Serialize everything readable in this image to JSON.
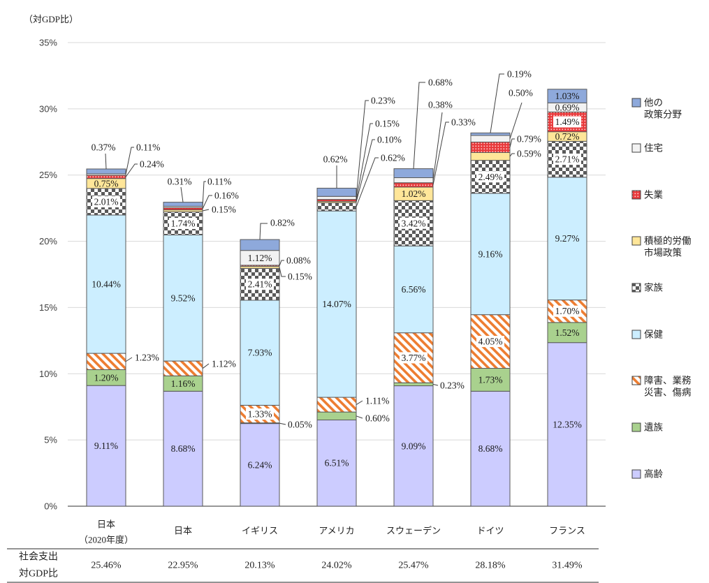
{
  "chart_data": {
    "type": "bar",
    "stacked": true,
    "title": "",
    "xlabel": "",
    "ylabel": "（対GDP比）",
    "ylim": [
      0,
      35
    ],
    "yticks": [
      0,
      5,
      10,
      15,
      20,
      25,
      30,
      35
    ],
    "ytick_labels": [
      "0%",
      "5%",
      "10%",
      "15%",
      "20%",
      "25%",
      "30%",
      "35%"
    ],
    "grid": true,
    "legend_position": "right",
    "categories": [
      "日本（2020年度）",
      "日本",
      "イギリス",
      "アメリカ",
      "スウェーデン",
      "ドイツ",
      "フランス"
    ],
    "category_label_lines": [
      [
        "日本",
        "（2020年度）"
      ],
      [
        "日本"
      ],
      [
        "イギリス"
      ],
      [
        "アメリカ"
      ],
      [
        "スウェーデン"
      ],
      [
        "ドイツ"
      ],
      [
        "フランス"
      ]
    ],
    "series": [
      {
        "name": "高齢",
        "legend_lines": [
          "高齢"
        ],
        "color": "#CCCCFF",
        "pattern": "solid",
        "values": [
          9.11,
          8.68,
          6.24,
          6.51,
          9.09,
          8.68,
          12.35
        ],
        "labels": [
          "9.11%",
          "8.68%",
          "6.24%",
          "6.51%",
          "9.09%",
          "8.68%",
          "12.35%"
        ]
      },
      {
        "name": "遺族",
        "legend_lines": [
          "遺族"
        ],
        "color": "#A9D18E",
        "pattern": "solid",
        "values": [
          1.2,
          1.16,
          0.05,
          0.6,
          0.23,
          1.73,
          1.52
        ],
        "labels": [
          "1.20%",
          "1.16%",
          "0.05%",
          "0.60%",
          "0.23%",
          "1.73%",
          "1.52%"
        ]
      },
      {
        "name": "障害、業務災害、傷病",
        "legend_lines": [
          "障害、業務",
          "災害、傷病"
        ],
        "color": "#ED7D31",
        "pattern": "diagonal-stripes",
        "values": [
          1.23,
          1.12,
          1.33,
          1.11,
          3.77,
          4.05,
          1.7
        ],
        "labels": [
          "1.23%",
          "1.12%",
          "1.33%",
          "1.11%",
          "3.77%",
          "4.05%",
          "1.70%"
        ]
      },
      {
        "name": "保健",
        "legend_lines": [
          "保健"
        ],
        "color": "#CCEEFF",
        "pattern": "solid",
        "values": [
          10.44,
          9.52,
          7.93,
          14.07,
          6.56,
          9.16,
          9.27
        ],
        "labels": [
          "10.44%",
          "9.52%",
          "7.93%",
          "14.07%",
          "6.56%",
          "9.16%",
          "9.27%"
        ]
      },
      {
        "name": "家族",
        "legend_lines": [
          "家族"
        ],
        "color": "#595959",
        "pattern": "checkerboard",
        "values": [
          2.01,
          1.74,
          2.41,
          0.62,
          3.42,
          2.49,
          2.71
        ],
        "labels": [
          "2.01%",
          "1.74%",
          "2.41%",
          "0.62%",
          "3.42%",
          "2.49%",
          "2.71%"
        ]
      },
      {
        "name": "積極的労働市場政策",
        "legend_lines": [
          "積極的労働",
          "市場政策"
        ],
        "color": "#FFE699",
        "pattern": "solid",
        "values": [
          0.75,
          0.15,
          0.15,
          0.1,
          1.02,
          0.59,
          0.72
        ],
        "labels": [
          "0.75%",
          "0.15%",
          "0.15%",
          "0.10%",
          "1.02%",
          "0.59%",
          "0.72%"
        ]
      },
      {
        "name": "失業",
        "legend_lines": [
          "失業"
        ],
        "color": "#FF0000",
        "pattern": "dots",
        "values": [
          0.24,
          0.16,
          0.08,
          0.15,
          0.33,
          0.79,
          1.49
        ],
        "labels": [
          "0.24%",
          "0.16%",
          "0.08%",
          "0.15%",
          "0.33%",
          "0.79%",
          "1.49%"
        ]
      },
      {
        "name": "住宅",
        "legend_lines": [
          "住宅"
        ],
        "color": "#F2F2F2",
        "pattern": "solid",
        "values": [
          0.11,
          0.11,
          1.12,
          0.23,
          0.38,
          0.5,
          0.69
        ],
        "labels": [
          "0.11%",
          "0.11%",
          "1.12%",
          "0.23%",
          "0.38%",
          "0.50%",
          "0.69%"
        ]
      },
      {
        "name": "他の政策分野",
        "legend_lines": [
          "他の",
          "政策分野"
        ],
        "color": "#8EA9DB",
        "pattern": "solid",
        "values": [
          0.37,
          0.31,
          0.82,
          0.62,
          0.68,
          0.19,
          1.03
        ],
        "labels": [
          "0.37%",
          "0.31%",
          "0.82%",
          "0.62%",
          "0.68%",
          "0.19%",
          "1.03%"
        ]
      }
    ],
    "totals": [
      25.46,
      22.95,
      20.13,
      24.02,
      25.47,
      28.18,
      31.49
    ]
  },
  "table": {
    "row_label_lines": [
      "社会支出",
      "対GDP比"
    ],
    "values": [
      "25.46%",
      "22.95%",
      "20.13%",
      "24.02%",
      "25.47%",
      "28.18%",
      "31.49%"
    ]
  }
}
